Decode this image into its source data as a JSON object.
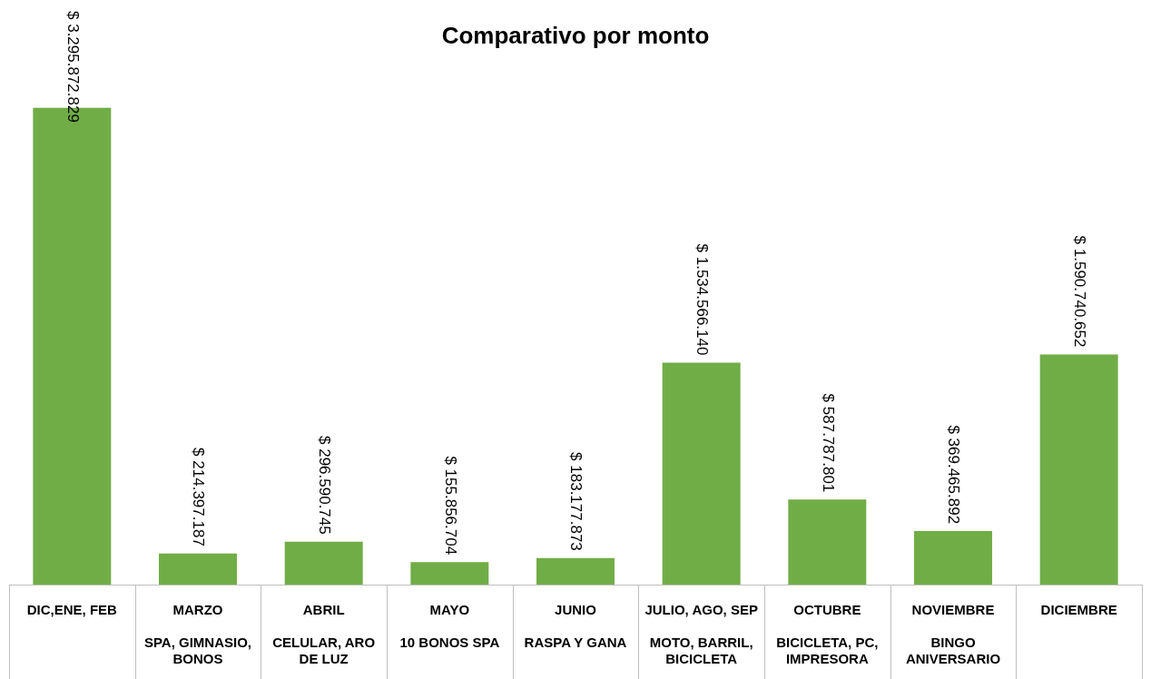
{
  "chart_data": {
    "type": "bar",
    "title": "Comparativo por monto",
    "categories": [
      "DIC,ENE, FEB",
      "MARZO\nSPA, GIMNASIO, BONOS",
      "ABRIL\nCELULAR, ARO DE LUZ",
      "MAYO\n10 BONOS SPA",
      "JUNIO\nRASPA Y GANA",
      "JULIO, AGO, SEP\nMOTO, BARRIL, BICICLETA",
      "OCTUBRE\nBICICLETA, PC, IMPRESORA",
      "NOVIEMBRE\nBINGO ANIVERSARIO",
      "DICIEMBRE"
    ],
    "values": [
      3295872829,
      214397187,
      296590745,
      155856704,
      183177873,
      1534566140,
      587787801,
      369465892,
      1590740652
    ],
    "value_labels": [
      "$ 3.295.872.829",
      "$ 214.397.187",
      "$ 296.590.745",
      "$ 155.856.704",
      "$ 183.177.873",
      "$ 1.534.566.140",
      "$ 587.787.801",
      "$ 369.465.892",
      "$ 1.590.740.652"
    ],
    "color": "#70ad47",
    "grid": false,
    "legend": false
  }
}
